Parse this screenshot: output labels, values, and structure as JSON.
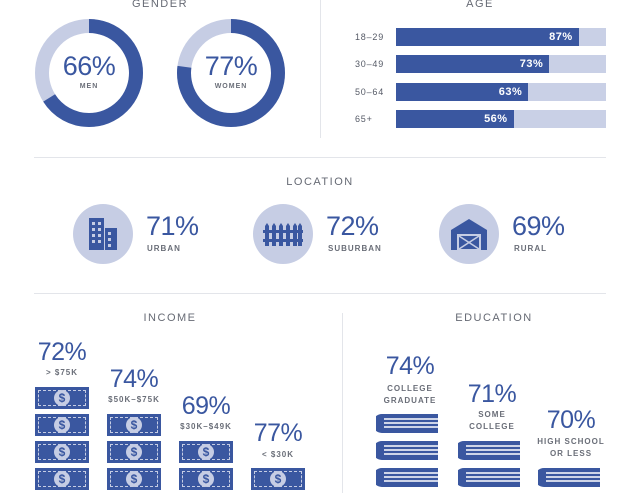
{
  "gender": {
    "title": "GENDER",
    "men": {
      "value": "66%",
      "label": "MEN",
      "pct": 66
    },
    "women": {
      "value": "77%",
      "label": "WOMEN",
      "pct": 77
    }
  },
  "age": {
    "title": "AGE",
    "bars": [
      {
        "label": "18–29",
        "value": "87%",
        "pct": 87
      },
      {
        "label": "30–49",
        "value": "73%",
        "pct": 73
      },
      {
        "label": "50–64",
        "value": "63%",
        "pct": 63
      },
      {
        "label": "65+",
        "value": "56%",
        "pct": 56
      }
    ]
  },
  "location": {
    "title": "LOCATION",
    "items": [
      {
        "value": "71%",
        "label": "URBAN",
        "icon": "buildings-icon"
      },
      {
        "value": "72%",
        "label": "SUBURBAN",
        "icon": "fence-icon"
      },
      {
        "value": "69%",
        "label": "RURAL",
        "icon": "barn-icon"
      }
    ]
  },
  "income": {
    "title": "INCOME",
    "items": [
      {
        "value": "72%",
        "label": "> $75K",
        "bills": 4,
        "icon": "dollar-bill-icon"
      },
      {
        "value": "74%",
        "label": "$50K–$75K",
        "bills": 3,
        "icon": "dollar-bill-icon"
      },
      {
        "value": "69%",
        "label": "$30K–$49K",
        "bills": 2,
        "icon": "dollar-bill-icon"
      },
      {
        "value": "77%",
        "label": "< $30K",
        "bills": 1,
        "icon": "dollar-bill-icon"
      }
    ]
  },
  "education": {
    "title": "EDUCATION",
    "items": [
      {
        "value": "74%",
        "label_line1": "COLLEGE",
        "label_line2": "GRADUATE",
        "books": 3,
        "icon": "book-stack-icon"
      },
      {
        "value": "71%",
        "label_line1": "SOME",
        "label_line2": "COLLEGE",
        "books": 2,
        "icon": "book-stack-icon"
      },
      {
        "value": "70%",
        "label_line1": "HIGH SCHOOL",
        "label_line2": "OR LESS",
        "books": 1,
        "icon": "book-stack-icon"
      }
    ]
  },
  "colors": {
    "primary": "#3a57a0",
    "light": "#c6cde4",
    "text_gray": "#666a74"
  },
  "chart_data": [
    {
      "type": "pie",
      "title": "GENDER",
      "categories": [
        "MEN",
        "WOMEN"
      ],
      "values": [
        66,
        77
      ]
    },
    {
      "type": "bar",
      "title": "AGE",
      "categories": [
        "18–29",
        "30–49",
        "50–64",
        "65+"
      ],
      "values": [
        87,
        73,
        63,
        56
      ],
      "ylim": [
        0,
        100
      ]
    },
    {
      "type": "table",
      "title": "LOCATION",
      "categories": [
        "URBAN",
        "SUBURBAN",
        "RURAL"
      ],
      "values": [
        71,
        72,
        69
      ]
    },
    {
      "type": "table",
      "title": "INCOME",
      "categories": [
        "> $75K",
        "$50K–$75K",
        "$30K–$49K",
        "< $30K"
      ],
      "values": [
        72,
        74,
        69,
        77
      ]
    },
    {
      "type": "table",
      "title": "EDUCATION",
      "categories": [
        "COLLEGE GRADUATE",
        "SOME COLLEGE",
        "HIGH SCHOOL OR LESS"
      ],
      "values": [
        74,
        71,
        70
      ]
    }
  ]
}
